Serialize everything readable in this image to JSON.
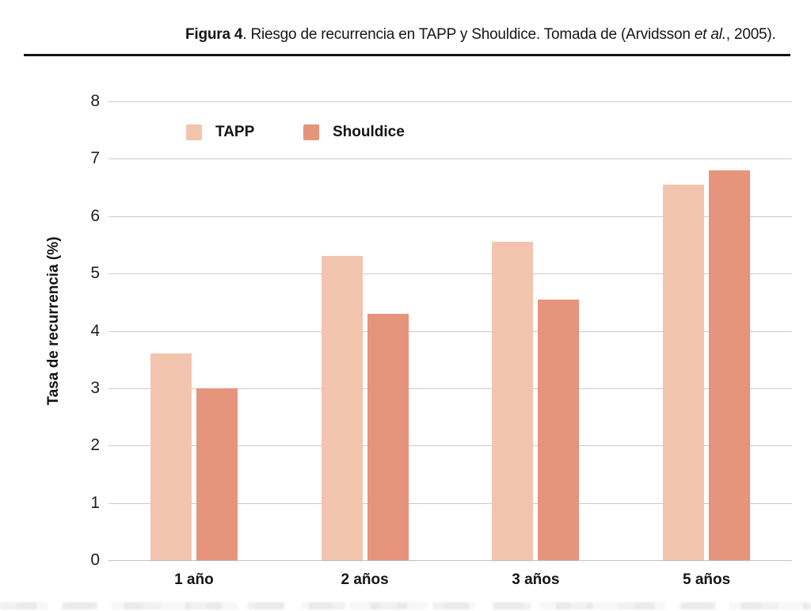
{
  "figure": {
    "caption": {
      "bold": "Figura 4",
      "text": ". Riesgo de recurrencia en TAPP y Shouldice. Tomada de (Arvidsson ",
      "italic": "et al.",
      "suffix": ", 2005)."
    }
  },
  "chart_data": {
    "type": "bar",
    "title": "",
    "categories": [
      "1 año",
      "2 años",
      "3 años",
      "5 años"
    ],
    "series": [
      {
        "name": "TAPP",
        "color": "#f2c4ae",
        "values": [
          3.6,
          5.3,
          5.55,
          6.55
        ]
      },
      {
        "name": "Shouldice",
        "color": "#e6947b",
        "values": [
          3.0,
          4.3,
          4.55,
          6.8
        ]
      }
    ],
    "xlabel": "",
    "ylabel": "Tasa de recurrencia (%)",
    "ylim": [
      0,
      8
    ],
    "yticks": [
      0,
      1,
      2,
      3,
      4,
      5,
      6,
      7,
      8
    ],
    "grid": true,
    "legend_position": "top-left-inside",
    "colors": {
      "gridline": "#cbcbcb",
      "axis_text": "#1f1f1f",
      "caption_text": "#161616"
    }
  }
}
